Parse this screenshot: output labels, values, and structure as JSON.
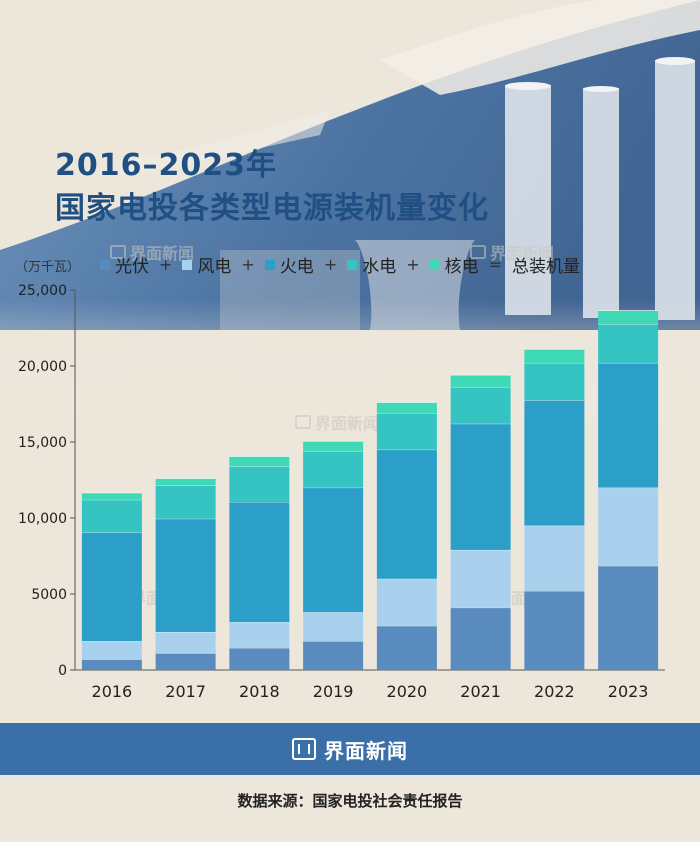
{
  "title_line1": "2016–2023年",
  "title_line2": "国家电投各类型电源装机量变化",
  "unit": "（万千瓦）",
  "legend": [
    {
      "name": "光伏",
      "color": "#5a8bbf"
    },
    {
      "name": "风电",
      "color": "#a9d1ee"
    },
    {
      "name": "火电",
      "color": "#2b9fc7"
    },
    {
      "name": "水电",
      "color": "#35c4c2"
    },
    {
      "name": "核电",
      "color": "#3fdab5"
    }
  ],
  "legend_ops": [
    "+",
    "+",
    "+",
    "+",
    "="
  ],
  "legend_total": "总装机量",
  "watermark": "界面新闻",
  "brand": "界面新闻",
  "source": "数据来源：国家电投社会责任报告",
  "chart_data": {
    "type": "bar",
    "stacked": true,
    "categories": [
      "2016",
      "2017",
      "2018",
      "2019",
      "2020",
      "2021",
      "2022",
      "2023"
    ],
    "series": [
      {
        "name": "光伏",
        "color": "#5a8bbf",
        "values": [
          700,
          1100,
          1450,
          1900,
          2900,
          4100,
          5200,
          6850
        ]
      },
      {
        "name": "风电",
        "color": "#a9d1ee",
        "values": [
          1200,
          1400,
          1700,
          1900,
          3100,
          3800,
          4300,
          5150
        ]
      },
      {
        "name": "火电",
        "color": "#2b9fc7",
        "values": [
          7150,
          7450,
          7900,
          8200,
          8500,
          8300,
          8250,
          8200
        ]
      },
      {
        "name": "水电",
        "color": "#35c4c2",
        "values": [
          2150,
          2200,
          2350,
          2400,
          2400,
          2400,
          2450,
          2550
        ]
      },
      {
        "name": "核电",
        "color": "#3fdab5",
        "values": [
          450,
          450,
          650,
          650,
          700,
          800,
          900,
          900
        ]
      }
    ],
    "ylim": [
      0,
      25000
    ],
    "yticks": [
      "0",
      "5000",
      "10,000",
      "15,000",
      "20,000",
      "25,000"
    ],
    "ytick_values": [
      0,
      5000,
      10000,
      15000,
      20000,
      25000
    ]
  }
}
